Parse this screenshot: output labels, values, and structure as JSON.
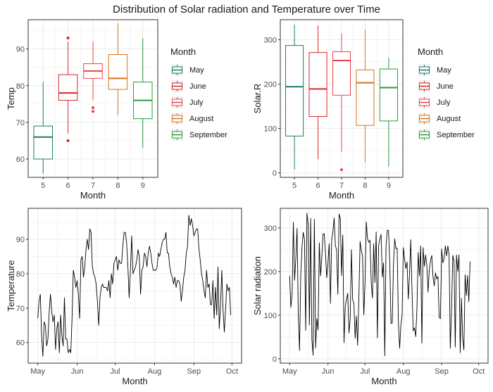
{
  "title": "Distribution of Solar radiation and Temperature over Time",
  "colors": {
    "May": "#1b7a6e",
    "June": "#d62728",
    "July": "#e8434a",
    "August": "#d9731a",
    "September": "#2a9d3a",
    "line": "#000000",
    "grid": "#ebebeb",
    "border": "#333333"
  },
  "chart_data": [
    {
      "type": "box",
      "xlabel": "Month",
      "ylabel": "Temp",
      "categories": [
        "5",
        "6",
        "7",
        "8",
        "9"
      ],
      "ylim": [
        55,
        98
      ],
      "yticks": [
        60,
        70,
        80,
        90
      ],
      "legend": {
        "title": "Month",
        "position": "right",
        "entries": [
          "May",
          "June",
          "July",
          "August",
          "September"
        ]
      },
      "boxes": [
        {
          "month": "May",
          "min": 56,
          "q1": 60,
          "median": 66,
          "q3": 69,
          "max": 81,
          "outliers": []
        },
        {
          "month": "June",
          "min": 67,
          "q1": 76,
          "median": 78,
          "q3": 83,
          "max": 92,
          "outliers": [
            93,
            65
          ]
        },
        {
          "month": "July",
          "min": 76,
          "q1": 82,
          "median": 84,
          "q3": 86,
          "max": 92,
          "outliers": [
            74,
            73
          ]
        },
        {
          "month": "August",
          "min": 72,
          "q1": 79,
          "median": 82,
          "q3": 88.5,
          "max": 97,
          "outliers": []
        },
        {
          "month": "September",
          "min": 63,
          "q1": 71,
          "median": 76,
          "q3": 81,
          "max": 93,
          "outliers": []
        }
      ]
    },
    {
      "type": "box",
      "xlabel": "Month",
      "ylabel": "Solar.R",
      "categories": [
        "5",
        "6",
        "7",
        "8",
        "9"
      ],
      "ylim": [
        -10,
        345
      ],
      "yticks": [
        0,
        100,
        200,
        300
      ],
      "legend": {
        "title": "Month",
        "position": "right",
        "entries": [
          "May",
          "June",
          "July",
          "August",
          "September"
        ]
      },
      "boxes": [
        {
          "month": "May",
          "min": 8,
          "q1": 83,
          "median": 194,
          "q3": 287,
          "max": 334,
          "outliers": []
        },
        {
          "month": "June",
          "min": 31,
          "q1": 127,
          "median": 189,
          "q3": 271,
          "max": 332,
          "outliers": []
        },
        {
          "month": "July",
          "min": 48,
          "q1": 175,
          "median": 253,
          "q3": 273,
          "max": 314,
          "outliers": [
            7
          ]
        },
        {
          "month": "August",
          "min": 24,
          "q1": 107,
          "median": 203,
          "q3": 232,
          "max": 322,
          "outliers": []
        },
        {
          "month": "September",
          "min": 14,
          "q1": 117,
          "median": 192,
          "q3": 234,
          "max": 259,
          "outliers": []
        }
      ]
    },
    {
      "type": "line",
      "xlabel": "Month",
      "ylabel": "Temperature",
      "xticks": [
        "May",
        "Jun",
        "Jul",
        "Aug",
        "Sep",
        "Oct"
      ],
      "xtick_dates": [
        "2023-05-01",
        "2023-06-01",
        "2023-07-01",
        "2023-08-01",
        "2023-09-01",
        "2023-10-01"
      ],
      "x_start": "2023-05-01",
      "x_end": "2023-10-01",
      "ylim": [
        54,
        99
      ],
      "yticks": [
        60,
        70,
        80,
        90
      ],
      "values": [
        67,
        72,
        74,
        62,
        56,
        66,
        65,
        59,
        61,
        69,
        74,
        69,
        66,
        68,
        58,
        64,
        66,
        57,
        68,
        62,
        59,
        73,
        61,
        61,
        57,
        58,
        57,
        67,
        81,
        79,
        76,
        78,
        74,
        67,
        84,
        85,
        79,
        82,
        87,
        90,
        87,
        93,
        92,
        82,
        80,
        79,
        77,
        72,
        65,
        73,
        76,
        77,
        76,
        76,
        76,
        75,
        78,
        73,
        80,
        77,
        83,
        84,
        85,
        81,
        84,
        83,
        83,
        88,
        92,
        92,
        89,
        82,
        73,
        81,
        91,
        80,
        81,
        82,
        84,
        87,
        85,
        74,
        81,
        82,
        86,
        85,
        82,
        86,
        88,
        86,
        83,
        81,
        81,
        81,
        82,
        86,
        85,
        87,
        89,
        90,
        90,
        92,
        86,
        86,
        82,
        80,
        79,
        77,
        79,
        76,
        78,
        78,
        77,
        72,
        75,
        79,
        81,
        86,
        88,
        97,
        94,
        96,
        94,
        91,
        92,
        93,
        93,
        87,
        84,
        80,
        78,
        75,
        73,
        81,
        76,
        77,
        71,
        71,
        78,
        67,
        76,
        68,
        82,
        64,
        71,
        81,
        69,
        63,
        70,
        77,
        75,
        76,
        68
      ]
    },
    {
      "type": "line",
      "xlabel": "Month",
      "ylabel": "Solar radiation",
      "xticks": [
        "May",
        "Jun",
        "Jul",
        "Aug",
        "Sep",
        "Oct"
      ],
      "xtick_dates": [
        "2023-05-01",
        "2023-06-01",
        "2023-07-01",
        "2023-08-01",
        "2023-09-01",
        "2023-10-01"
      ],
      "x_start": "2023-05-01",
      "x_end": "2023-10-01",
      "ylim": [
        -10,
        345
      ],
      "yticks": [
        0,
        100,
        200,
        300
      ],
      "values": [
        190,
        118,
        149,
        313,
        180,
        230,
        299,
        99,
        19,
        194,
        256,
        290,
        274,
        65,
        334,
        307,
        78,
        322,
        44,
        8,
        320,
        25,
        92,
        66,
        266,
        190,
        230,
        286,
        287,
        242,
        186,
        220,
        264,
        127,
        273,
        291,
        323,
        259,
        250,
        148,
        332,
        322,
        191,
        284,
        37,
        120,
        137,
        150,
        59,
        91,
        250,
        135,
        127,
        47,
        98,
        31,
        138,
        269,
        248,
        236,
        101,
        175,
        314,
        276,
        267,
        272,
        175,
        139,
        264,
        175,
        291,
        48,
        260,
        274,
        285,
        187,
        220,
        7,
        258,
        295,
        294,
        223,
        81,
        82,
        213,
        275,
        253,
        254,
        83,
        24,
        77,
        100,
        255,
        229,
        207,
        222,
        137,
        192,
        273,
        157,
        64,
        71,
        51,
        115,
        244,
        190,
        259,
        36,
        255,
        212,
        238,
        215,
        153,
        203,
        225,
        237,
        188,
        167,
        197,
        183,
        189,
        95,
        92,
        252,
        220,
        230,
        259,
        236,
        259,
        238,
        24,
        112,
        237,
        224,
        27,
        238,
        201,
        238,
        14,
        139,
        49,
        20,
        193,
        145,
        191,
        131,
        223
      ]
    }
  ]
}
